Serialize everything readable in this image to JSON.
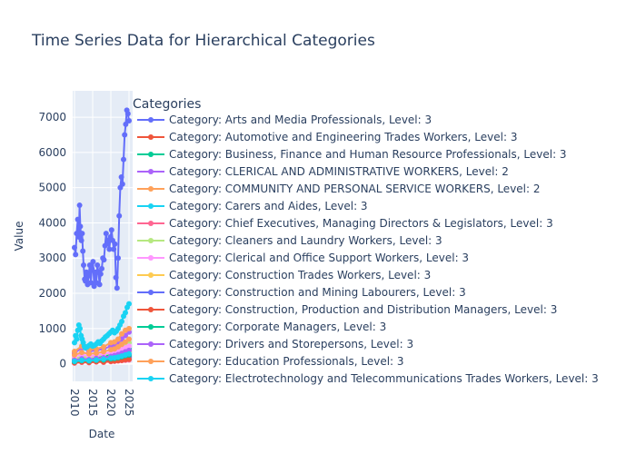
{
  "chart_data": {
    "type": "line",
    "title": "Time Series Data for Hierarchical Categories",
    "xlabel": "Date",
    "ylabel": "Value",
    "x_ticks": [
      "2010",
      "2015",
      "2020",
      "2025"
    ],
    "x_range": [
      2009.5,
      2026.0
    ],
    "y_ticks": [
      0,
      1000,
      2000,
      3000,
      4000,
      5000,
      6000,
      7000
    ],
    "y_range": [
      -500,
      7750
    ],
    "grid": true,
    "legend": {
      "title": "Categories",
      "placement": "right"
    },
    "series": [
      {
        "name": "Category: Arts and Media Professionals, Level: 3",
        "color": "#636efa",
        "x": [
          2010.0,
          2010.3,
          2010.6,
          2010.9,
          2011.2,
          2011.4,
          2011.6,
          2011.9,
          2012.1,
          2012.3,
          2012.5,
          2012.8,
          2013.0,
          2013.3,
          2013.6,
          2013.9,
          2014.2,
          2014.5,
          2014.8,
          2015.1,
          2015.4,
          2015.7,
          2016.0,
          2016.3,
          2016.6,
          2016.9,
          2017.2,
          2017.5,
          2017.8,
          2018.1,
          2018.4,
          2018.7,
          2019.0,
          2019.3,
          2019.6,
          2019.9,
          2020.2,
          2020.5,
          2020.8,
          2021.1,
          2021.4,
          2021.7,
          2022.0,
          2022.3,
          2022.6,
          2022.9,
          2023.2,
          2023.5,
          2023.8,
          2024.1,
          2024.4,
          2024.7,
          2025.0
        ],
        "y": [
          3300,
          3100,
          3700,
          4100,
          3600,
          4500,
          3900,
          3500,
          3700,
          3200,
          2800,
          2400,
          2350,
          2600,
          2250,
          2500,
          2800,
          2300,
          2700,
          2900,
          2200,
          2600,
          2300,
          2800,
          2600,
          2250,
          2550,
          2700,
          3000,
          2950,
          3350,
          3700,
          3400,
          3500,
          3250,
          3600,
          3800,
          3500,
          3250,
          3400,
          2450,
          2150,
          3000,
          4200,
          5000,
          5300,
          5100,
          5800,
          6500,
          6800,
          7200,
          7100,
          6900
        ]
      },
      {
        "name": "Category: Automotive and Engineering Trades Workers, Level: 3",
        "color": "#ef553b",
        "x": [
          2010.0,
          2012.0,
          2014.0,
          2016.0,
          2018.0,
          2020.0,
          2021.0,
          2022.0,
          2023.0,
          2024.0,
          2025.0
        ],
        "y": [
          50,
          80,
          60,
          90,
          70,
          120,
          100,
          150,
          180,
          160,
          200
        ]
      },
      {
        "name": "Category: Business, Finance and Human Resource Professionals, Level: 3",
        "color": "#00cc96",
        "x": [
          2010.0,
          2012.0,
          2014.0,
          2016.0,
          2018.0,
          2020.0,
          2021.0,
          2022.0,
          2023.0,
          2024.0,
          2025.0
        ],
        "y": [
          100,
          150,
          120,
          160,
          200,
          250,
          230,
          300,
          350,
          400,
          420
        ]
      },
      {
        "name": "Category: CLERICAL AND ADMINISTRATIVE WORKERS, Level: 2",
        "color": "#ab63fa",
        "x": [
          2010.0,
          2012.0,
          2014.0,
          2016.0,
          2018.0,
          2020.0,
          2021.0,
          2022.0,
          2023.0,
          2024.0,
          2025.0
        ],
        "y": [
          300,
          450,
          350,
          380,
          420,
          500,
          550,
          600,
          700,
          800,
          900
        ]
      },
      {
        "name": "Category: COMMUNITY AND PERSONAL SERVICE WORKERS, Level: 2",
        "color": "#ffa15a",
        "x": [
          2010.0,
          2012.0,
          2014.0,
          2016.0,
          2018.0,
          2020.0,
          2021.0,
          2022.0,
          2023.0,
          2024.0,
          2025.0
        ],
        "y": [
          350,
          500,
          400,
          420,
          480,
          600,
          620,
          700,
          850,
          950,
          1000
        ]
      },
      {
        "name": "Category: Carers and Aides, Level: 3",
        "color": "#19d3f3",
        "x": [
          2010.0,
          2010.3,
          2010.6,
          2010.9,
          2011.2,
          2011.5,
          2011.8,
          2012.1,
          2012.4,
          2012.7,
          2013.0,
          2013.5,
          2014.0,
          2014.5,
          2015.0,
          2015.5,
          2016.0,
          2016.5,
          2017.0,
          2017.5,
          2018.0,
          2018.5,
          2019.0,
          2019.5,
          2020.0,
          2020.5,
          2021.0,
          2021.5,
          2022.0,
          2022.5,
          2023.0,
          2023.5,
          2024.0,
          2024.5,
          2025.0
        ],
        "y": [
          600,
          800,
          700,
          950,
          1100,
          1000,
          800,
          700,
          600,
          500,
          450,
          480,
          520,
          560,
          500,
          520,
          560,
          620,
          580,
          650,
          700,
          760,
          800,
          850,
          900,
          950,
          880,
          920,
          1000,
          1100,
          1200,
          1350,
          1450,
          1600,
          1700
        ]
      },
      {
        "name": "Category: Chief Executives, Managing Directors & Legislators, Level: 3",
        "color": "#ff6692",
        "x": [
          2010.0,
          2012.0,
          2014.0,
          2016.0,
          2018.0,
          2020.0,
          2021.0,
          2022.0,
          2023.0,
          2024.0,
          2025.0
        ],
        "y": [
          20,
          40,
          30,
          50,
          40,
          60,
          70,
          80,
          90,
          100,
          110
        ]
      },
      {
        "name": "Category: Cleaners and Laundry Workers, Level: 3",
        "color": "#b6e880",
        "x": [
          2010.0,
          2012.0,
          2014.0,
          2016.0,
          2018.0,
          2020.0,
          2021.0,
          2022.0,
          2023.0,
          2024.0,
          2025.0
        ],
        "y": [
          150,
          200,
          180,
          220,
          260,
          300,
          320,
          380,
          450,
          520,
          600
        ]
      },
      {
        "name": "Category: Clerical and Office Support Workers, Level: 3",
        "color": "#ff97ff",
        "x": [
          2010.0,
          2012.0,
          2014.0,
          2016.0,
          2018.0,
          2020.0,
          2021.0,
          2022.0,
          2023.0,
          2024.0,
          2025.0
        ],
        "y": [
          200,
          260,
          220,
          240,
          280,
          320,
          340,
          360,
          400,
          450,
          500
        ]
      },
      {
        "name": "Category: Construction Trades Workers, Level: 3",
        "color": "#fecb52",
        "x": [
          2010.0,
          2012.0,
          2014.0,
          2016.0,
          2018.0,
          2020.0,
          2021.0,
          2022.0,
          2023.0,
          2024.0,
          2025.0
        ],
        "y": [
          80,
          120,
          100,
          140,
          160,
          200,
          210,
          240,
          280,
          320,
          350
        ]
      },
      {
        "name": "Category: Construction and Mining Labourers, Level: 3",
        "color": "#636efa",
        "x": [
          2010.0,
          2012.0,
          2014.0,
          2016.0,
          2018.0,
          2020.0,
          2021.0,
          2022.0,
          2023.0,
          2024.0,
          2025.0
        ],
        "y": [
          40,
          60,
          50,
          70,
          80,
          100,
          110,
          130,
          150,
          170,
          190
        ]
      },
      {
        "name": "Category: Construction, Production and Distribution Managers, Level: 3",
        "color": "#ef553b",
        "x": [
          2010.0,
          2012.0,
          2014.0,
          2016.0,
          2018.0,
          2020.0,
          2021.0,
          2022.0,
          2023.0,
          2024.0,
          2025.0
        ],
        "y": [
          30,
          50,
          40,
          60,
          50,
          70,
          80,
          90,
          100,
          120,
          130
        ]
      },
      {
        "name": "Category: Corporate Managers, Level: 3",
        "color": "#00cc96",
        "x": [
          2010.0,
          2012.0,
          2014.0,
          2016.0,
          2018.0,
          2020.0,
          2021.0,
          2022.0,
          2023.0,
          2024.0,
          2025.0
        ],
        "y": [
          60,
          90,
          80,
          100,
          110,
          140,
          150,
          170,
          200,
          230,
          250
        ]
      },
      {
        "name": "Category: Drivers and Storepersons, Level: 3",
        "color": "#ab63fa",
        "x": [
          2010.0,
          2012.0,
          2014.0,
          2016.0,
          2018.0,
          2020.0,
          2021.0,
          2022.0,
          2023.0,
          2024.0,
          2025.0
        ],
        "y": [
          100,
          140,
          120,
          150,
          170,
          210,
          230,
          260,
          300,
          340,
          380
        ]
      },
      {
        "name": "Category: Education Professionals, Level: 3",
        "color": "#ffa15a",
        "x": [
          2010.0,
          2012.0,
          2014.0,
          2016.0,
          2018.0,
          2020.0,
          2021.0,
          2022.0,
          2023.0,
          2024.0,
          2025.0
        ],
        "y": [
          250,
          320,
          280,
          300,
          340,
          400,
          420,
          480,
          550,
          620,
          700
        ]
      },
      {
        "name": "Category: Electrotechnology and Telecommunications Trades Workers, Level: 3",
        "color": "#19d3f3",
        "x": [
          2010.0,
          2012.0,
          2014.0,
          2016.0,
          2018.0,
          2020.0,
          2021.0,
          2022.0,
          2023.0,
          2024.0,
          2025.0
        ],
        "y": [
          70,
          100,
          90,
          110,
          130,
          160,
          170,
          190,
          220,
          250,
          280
        ]
      }
    ]
  }
}
